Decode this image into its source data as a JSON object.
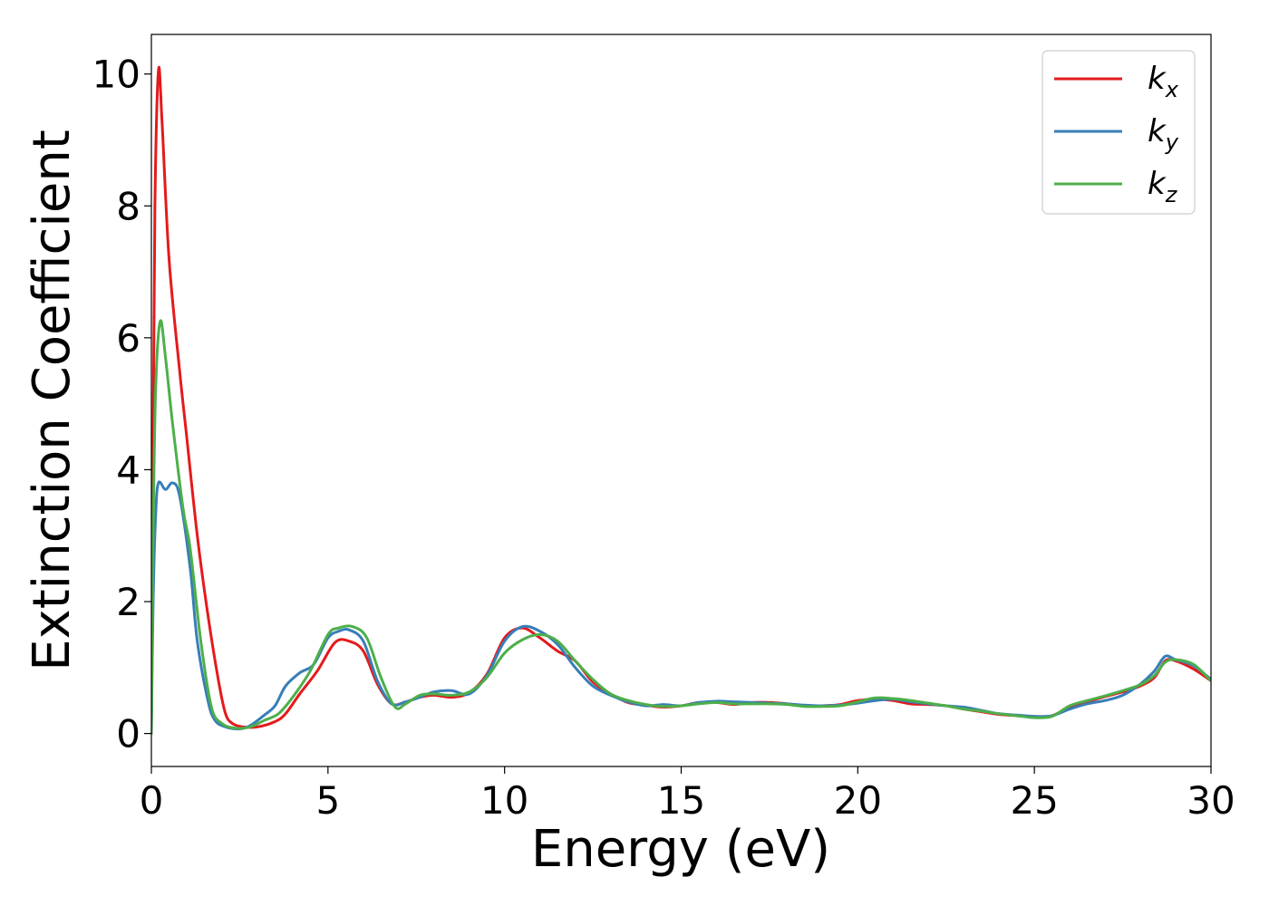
{
  "chart_data": {
    "type": "line",
    "title": "",
    "xlabel": "Energy (eV)",
    "ylabel": "Extinction Coefficient",
    "xlim": [
      0,
      30
    ],
    "ylim": [
      -0.5,
      10.6
    ],
    "xticks": [
      0,
      5,
      10,
      15,
      20,
      25,
      30
    ],
    "yticks": [
      0,
      2,
      4,
      6,
      8,
      10
    ],
    "xtick_labels": [
      "0",
      "5",
      "10",
      "15",
      "20",
      "25",
      "30"
    ],
    "ytick_labels": [
      "0",
      "2",
      "4",
      "6",
      "8",
      "10"
    ],
    "grid": false,
    "legend_position": "top-right",
    "series": [
      {
        "name": "k_x",
        "label_main": "k",
        "label_sub": "x",
        "color": "#e41a1c",
        "points": [
          [
            0,
            0
          ],
          [
            0.05,
            4.5
          ],
          [
            0.1,
            8.0
          ],
          [
            0.2,
            10.05
          ],
          [
            0.3,
            9.3
          ],
          [
            0.5,
            7.2
          ],
          [
            0.8,
            5.5
          ],
          [
            1.0,
            4.5
          ],
          [
            1.3,
            3.0
          ],
          [
            1.6,
            1.8
          ],
          [
            1.9,
            0.8
          ],
          [
            2.1,
            0.3
          ],
          [
            2.3,
            0.15
          ],
          [
            2.6,
            0.1
          ],
          [
            3.0,
            0.1
          ],
          [
            3.5,
            0.18
          ],
          [
            3.8,
            0.3
          ],
          [
            4.2,
            0.6
          ],
          [
            4.7,
            0.95
          ],
          [
            5.2,
            1.38
          ],
          [
            5.6,
            1.4
          ],
          [
            6.0,
            1.25
          ],
          [
            6.4,
            0.75
          ],
          [
            6.8,
            0.45
          ],
          [
            7.2,
            0.48
          ],
          [
            7.6,
            0.55
          ],
          [
            8.0,
            0.58
          ],
          [
            8.5,
            0.55
          ],
          [
            9.0,
            0.62
          ],
          [
            9.5,
            0.9
          ],
          [
            10.0,
            1.45
          ],
          [
            10.5,
            1.6
          ],
          [
            11.0,
            1.45
          ],
          [
            11.5,
            1.25
          ],
          [
            12.0,
            1.1
          ],
          [
            12.5,
            0.78
          ],
          [
            13.0,
            0.6
          ],
          [
            13.5,
            0.47
          ],
          [
            14.0,
            0.43
          ],
          [
            14.5,
            0.4
          ],
          [
            15.0,
            0.42
          ],
          [
            15.5,
            0.47
          ],
          [
            16.0,
            0.47
          ],
          [
            16.5,
            0.44
          ],
          [
            17.0,
            0.47
          ],
          [
            17.5,
            0.47
          ],
          [
            18.0,
            0.45
          ],
          [
            18.5,
            0.42
          ],
          [
            19.0,
            0.42
          ],
          [
            19.5,
            0.44
          ],
          [
            20.0,
            0.5
          ],
          [
            20.5,
            0.52
          ],
          [
            21.0,
            0.5
          ],
          [
            21.5,
            0.45
          ],
          [
            22.0,
            0.44
          ],
          [
            22.5,
            0.42
          ],
          [
            23.0,
            0.37
          ],
          [
            23.5,
            0.33
          ],
          [
            24.0,
            0.29
          ],
          [
            24.5,
            0.27
          ],
          [
            25.0,
            0.25
          ],
          [
            25.5,
            0.27
          ],
          [
            26.0,
            0.4
          ],
          [
            26.5,
            0.48
          ],
          [
            27.0,
            0.56
          ],
          [
            27.5,
            0.63
          ],
          [
            28.0,
            0.72
          ],
          [
            28.4,
            0.85
          ],
          [
            28.7,
            1.1
          ],
          [
            29.0,
            1.1
          ],
          [
            29.5,
            0.98
          ],
          [
            30.0,
            0.8
          ]
        ]
      },
      {
        "name": "k_y",
        "label_main": "k",
        "label_sub": "y",
        "color": "#377eb8",
        "points": [
          [
            0,
            0
          ],
          [
            0.05,
            2.0
          ],
          [
            0.12,
            3.3
          ],
          [
            0.2,
            3.8
          ],
          [
            0.4,
            3.7
          ],
          [
            0.6,
            3.8
          ],
          [
            0.8,
            3.6
          ],
          [
            1.1,
            2.5
          ],
          [
            1.3,
            1.4
          ],
          [
            1.6,
            0.5
          ],
          [
            1.8,
            0.2
          ],
          [
            2.1,
            0.1
          ],
          [
            2.5,
            0.07
          ],
          [
            2.8,
            0.12
          ],
          [
            3.2,
            0.28
          ],
          [
            3.5,
            0.42
          ],
          [
            3.8,
            0.72
          ],
          [
            4.2,
            0.92
          ],
          [
            4.6,
            1.05
          ],
          [
            5.0,
            1.45
          ],
          [
            5.3,
            1.55
          ],
          [
            5.6,
            1.57
          ],
          [
            6.0,
            1.4
          ],
          [
            6.4,
            0.8
          ],
          [
            6.8,
            0.45
          ],
          [
            7.2,
            0.48
          ],
          [
            7.6,
            0.55
          ],
          [
            8.0,
            0.63
          ],
          [
            8.5,
            0.65
          ],
          [
            9.0,
            0.6
          ],
          [
            9.5,
            0.88
          ],
          [
            10.0,
            1.4
          ],
          [
            10.5,
            1.62
          ],
          [
            11.0,
            1.55
          ],
          [
            11.5,
            1.35
          ],
          [
            12.0,
            1.0
          ],
          [
            12.5,
            0.72
          ],
          [
            13.0,
            0.58
          ],
          [
            13.5,
            0.48
          ],
          [
            14.0,
            0.42
          ],
          [
            14.5,
            0.44
          ],
          [
            15.0,
            0.42
          ],
          [
            15.5,
            0.47
          ],
          [
            16.0,
            0.49
          ],
          [
            16.5,
            0.48
          ],
          [
            17.0,
            0.47
          ],
          [
            17.5,
            0.46
          ],
          [
            18.0,
            0.45
          ],
          [
            18.5,
            0.43
          ],
          [
            19.0,
            0.42
          ],
          [
            19.5,
            0.43
          ],
          [
            20.0,
            0.46
          ],
          [
            20.5,
            0.5
          ],
          [
            21.0,
            0.52
          ],
          [
            21.5,
            0.48
          ],
          [
            22.0,
            0.45
          ],
          [
            22.5,
            0.42
          ],
          [
            23.0,
            0.4
          ],
          [
            23.5,
            0.35
          ],
          [
            24.0,
            0.3
          ],
          [
            24.5,
            0.28
          ],
          [
            25.0,
            0.26
          ],
          [
            25.5,
            0.27
          ],
          [
            26.0,
            0.37
          ],
          [
            26.5,
            0.45
          ],
          [
            27.0,
            0.5
          ],
          [
            27.5,
            0.58
          ],
          [
            28.0,
            0.75
          ],
          [
            28.4,
            0.95
          ],
          [
            28.7,
            1.17
          ],
          [
            29.0,
            1.12
          ],
          [
            29.5,
            1.03
          ],
          [
            30.0,
            0.82
          ]
        ]
      },
      {
        "name": "k_z",
        "label_main": "k",
        "label_sub": "z",
        "color": "#4daf4a",
        "points": [
          [
            0,
            0
          ],
          [
            0.05,
            3.0
          ],
          [
            0.12,
            5.2
          ],
          [
            0.25,
            6.25
          ],
          [
            0.4,
            5.7
          ],
          [
            0.6,
            4.7
          ],
          [
            0.9,
            3.4
          ],
          [
            1.1,
            2.8
          ],
          [
            1.4,
            1.4
          ],
          [
            1.7,
            0.4
          ],
          [
            2.0,
            0.15
          ],
          [
            2.4,
            0.08
          ],
          [
            2.8,
            0.1
          ],
          [
            3.2,
            0.2
          ],
          [
            3.6,
            0.3
          ],
          [
            4.0,
            0.55
          ],
          [
            4.5,
            0.95
          ],
          [
            5.0,
            1.5
          ],
          [
            5.3,
            1.6
          ],
          [
            5.7,
            1.62
          ],
          [
            6.1,
            1.45
          ],
          [
            6.5,
            0.85
          ],
          [
            6.9,
            0.4
          ],
          [
            7.2,
            0.45
          ],
          [
            7.6,
            0.58
          ],
          [
            8.0,
            0.6
          ],
          [
            8.5,
            0.58
          ],
          [
            9.0,
            0.63
          ],
          [
            9.5,
            0.85
          ],
          [
            10.0,
            1.22
          ],
          [
            10.5,
            1.42
          ],
          [
            11.0,
            1.5
          ],
          [
            11.5,
            1.4
          ],
          [
            12.0,
            1.1
          ],
          [
            12.5,
            0.82
          ],
          [
            13.0,
            0.6
          ],
          [
            13.5,
            0.5
          ],
          [
            14.0,
            0.44
          ],
          [
            14.5,
            0.41
          ],
          [
            15.0,
            0.42
          ],
          [
            15.5,
            0.45
          ],
          [
            16.0,
            0.47
          ],
          [
            16.5,
            0.45
          ],
          [
            17.0,
            0.45
          ],
          [
            17.5,
            0.45
          ],
          [
            18.0,
            0.44
          ],
          [
            18.5,
            0.41
          ],
          [
            19.0,
            0.41
          ],
          [
            19.5,
            0.42
          ],
          [
            20.0,
            0.48
          ],
          [
            20.5,
            0.54
          ],
          [
            21.0,
            0.53
          ],
          [
            21.5,
            0.5
          ],
          [
            22.0,
            0.46
          ],
          [
            22.5,
            0.42
          ],
          [
            23.0,
            0.37
          ],
          [
            23.5,
            0.34
          ],
          [
            24.0,
            0.3
          ],
          [
            24.5,
            0.27
          ],
          [
            25.0,
            0.24
          ],
          [
            25.5,
            0.26
          ],
          [
            26.0,
            0.42
          ],
          [
            26.5,
            0.5
          ],
          [
            27.0,
            0.57
          ],
          [
            27.5,
            0.65
          ],
          [
            28.0,
            0.74
          ],
          [
            28.4,
            0.88
          ],
          [
            28.7,
            1.08
          ],
          [
            29.0,
            1.12
          ],
          [
            29.5,
            1.05
          ],
          [
            30.0,
            0.8
          ]
        ]
      }
    ]
  }
}
